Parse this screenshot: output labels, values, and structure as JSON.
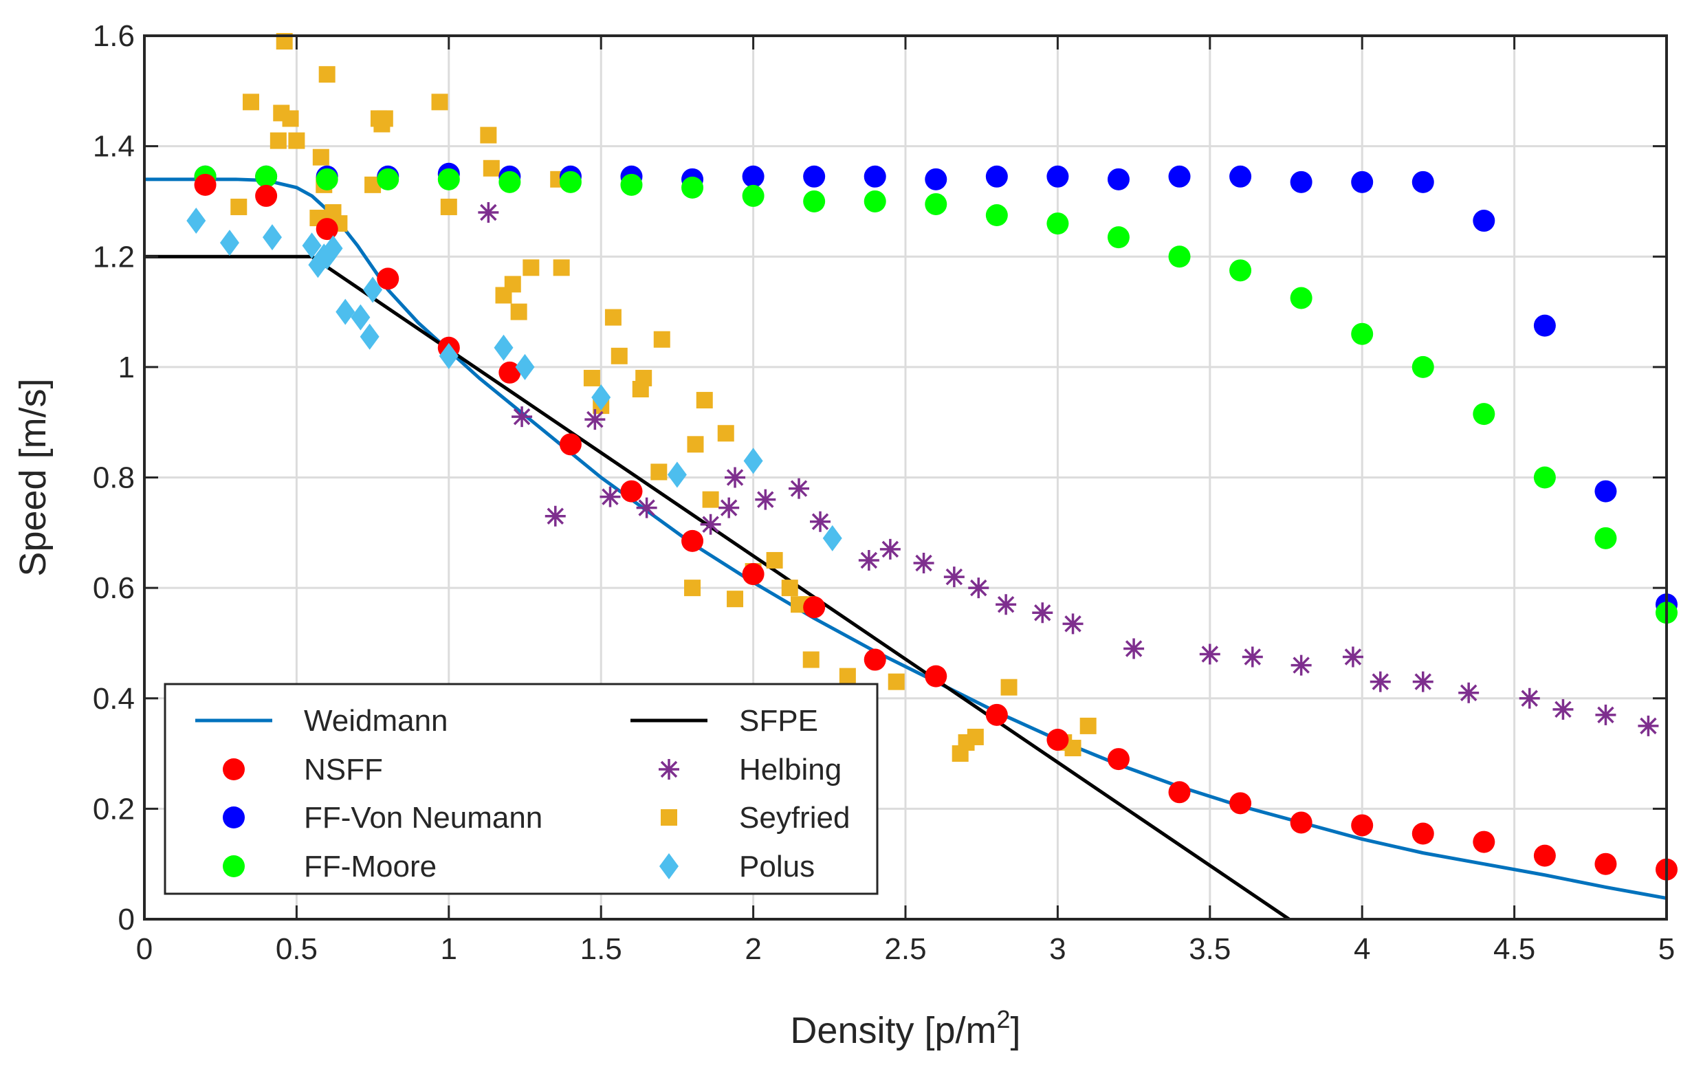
{
  "chart_data": {
    "type": "scatter",
    "title": "",
    "xlabel": "Density [p/m",
    "xlabel_sup": "2",
    "xlabel_end": "]",
    "ylabel": "Speed [m/s]",
    "xlim": [
      0,
      5
    ],
    "ylim": [
      0,
      1.6
    ],
    "xticks": [
      0,
      0.5,
      1,
      1.5,
      2,
      2.5,
      3,
      3.5,
      4,
      4.5,
      5
    ],
    "xtick_labels": [
      "0",
      "0.5",
      "1",
      "1.5",
      "2",
      "2.5",
      "3",
      "3.5",
      "4",
      "4.5",
      "5"
    ],
    "yticks": [
      0,
      0.2,
      0.4,
      0.6,
      0.8,
      1,
      1.2,
      1.4,
      1.6
    ],
    "ytick_labels": [
      "0",
      "0.2",
      "0.4",
      "0.6",
      "0.8",
      "1",
      "1.2",
      "1.4",
      "1.6"
    ],
    "grid": true,
    "legend_position": "bottom-left",
    "series": [
      {
        "name": "Weidmann",
        "kind": "line",
        "color": "#0072BD",
        "x": [
          0,
          0.1,
          0.2,
          0.3,
          0.4,
          0.5,
          0.55,
          0.6,
          0.65,
          0.7,
          0.75,
          0.8,
          0.85,
          0.9,
          0.95,
          1,
          1.1,
          1.2,
          1.3,
          1.4,
          1.5,
          1.6,
          1.7,
          1.8,
          1.9,
          2,
          2.2,
          2.4,
          2.6,
          2.8,
          3,
          3.2,
          3.4,
          3.6,
          3.8,
          4,
          4.2,
          4.4,
          4.6,
          4.8,
          5
        ],
        "y": [
          1.34,
          1.34,
          1.34,
          1.34,
          1.338,
          1.325,
          1.31,
          1.285,
          1.255,
          1.22,
          1.18,
          1.14,
          1.11,
          1.08,
          1.055,
          1.03,
          0.98,
          0.935,
          0.89,
          0.845,
          0.8,
          0.76,
          0.72,
          0.68,
          0.645,
          0.61,
          0.545,
          0.485,
          0.43,
          0.375,
          0.325,
          0.28,
          0.24,
          0.205,
          0.175,
          0.145,
          0.12,
          0.1,
          0.08,
          0.058,
          0.038
        ]
      },
      {
        "name": "SFPE",
        "kind": "line",
        "color": "#000000",
        "x": [
          0,
          0.55,
          3.76
        ],
        "y": [
          1.2,
          1.2,
          0
        ]
      },
      {
        "name": "NSFF",
        "kind": "circle",
        "color": "#FF0000",
        "x": [
          0.2,
          0.4,
          0.6,
          0.8,
          1.0,
          1.2,
          1.4,
          1.6,
          1.8,
          2.0,
          2.2,
          2.4,
          2.6,
          2.8,
          3.0,
          3.2,
          3.4,
          3.6,
          3.8,
          4.0,
          4.2,
          4.4,
          4.6,
          4.8,
          5.0
        ],
        "y": [
          1.33,
          1.31,
          1.25,
          1.16,
          1.035,
          0.99,
          0.86,
          0.775,
          0.685,
          0.625,
          0.565,
          0.47,
          0.44,
          0.37,
          0.325,
          0.29,
          0.23,
          0.21,
          0.175,
          0.17,
          0.155,
          0.14,
          0.115,
          0.1,
          0.09
        ]
      },
      {
        "name": "FF-Von Neumann",
        "kind": "circle",
        "color": "#0000FF",
        "x": [
          0.2,
          0.4,
          0.6,
          0.8,
          1.0,
          1.2,
          1.4,
          1.6,
          1.8,
          2.0,
          2.2,
          2.4,
          2.6,
          2.8,
          3.0,
          3.2,
          3.4,
          3.6,
          3.8,
          4.0,
          4.2,
          4.4,
          4.6,
          4.8,
          5.0
        ],
        "y": [
          1.345,
          1.345,
          1.345,
          1.345,
          1.35,
          1.345,
          1.345,
          1.345,
          1.34,
          1.345,
          1.345,
          1.345,
          1.34,
          1.345,
          1.345,
          1.34,
          1.345,
          1.345,
          1.335,
          1.335,
          1.335,
          1.265,
          1.075,
          0.775,
          0.57
        ]
      },
      {
        "name": "FF-Moore",
        "kind": "circle",
        "color": "#00FF00",
        "x": [
          0.2,
          0.4,
          0.6,
          0.8,
          1.0,
          1.2,
          1.4,
          1.6,
          1.8,
          2.0,
          2.2,
          2.4,
          2.6,
          2.8,
          3.0,
          3.2,
          3.4,
          3.6,
          3.8,
          4.0,
          4.2,
          4.4,
          4.6,
          4.8,
          5.0
        ],
        "y": [
          1.345,
          1.345,
          1.34,
          1.34,
          1.34,
          1.335,
          1.335,
          1.33,
          1.325,
          1.31,
          1.3,
          1.3,
          1.295,
          1.275,
          1.26,
          1.235,
          1.2,
          1.175,
          1.125,
          1.06,
          1.0,
          0.915,
          0.8,
          0.69,
          0.555
        ]
      },
      {
        "name": "Helbing",
        "kind": "asterisk",
        "color": "#7E2F8E",
        "x": [
          1.13,
          1.24,
          1.35,
          1.48,
          1.53,
          1.65,
          1.86,
          1.92,
          1.94,
          2.04,
          2.15,
          2.22,
          2.38,
          2.45,
          2.56,
          2.66,
          2.74,
          2.83,
          2.95,
          3.05,
          3.25,
          3.5,
          3.64,
          3.8,
          3.97,
          4.06,
          4.2,
          4.35,
          4.55,
          4.66,
          4.8,
          4.94
        ],
        "y": [
          1.28,
          0.91,
          0.73,
          0.905,
          0.765,
          0.745,
          0.715,
          0.745,
          0.8,
          0.76,
          0.78,
          0.72,
          0.65,
          0.67,
          0.645,
          0.62,
          0.6,
          0.57,
          0.555,
          0.535,
          0.49,
          0.48,
          0.475,
          0.46,
          0.475,
          0.43,
          0.43,
          0.41,
          0.4,
          0.38,
          0.37,
          0.35
        ]
      },
      {
        "name": "Seyfried",
        "kind": "square",
        "color": "#EDB120",
        "x": [
          0.35,
          0.31,
          0.46,
          0.44,
          0.48,
          0.5,
          0.45,
          0.58,
          0.6,
          0.57,
          0.59,
          0.62,
          0.64,
          0.77,
          0.75,
          0.79,
          0.78,
          0.97,
          1.0,
          1.13,
          1.14,
          1.18,
          1.21,
          1.23,
          1.27,
          1.36,
          1.37,
          1.47,
          1.5,
          1.54,
          1.56,
          1.63,
          1.64,
          1.69,
          1.7,
          1.81,
          1.84,
          1.8,
          1.91,
          1.94,
          1.86,
          2.0,
          2.07,
          2.12,
          2.15,
          2.18,
          2.19,
          2.31,
          2.47,
          2.68,
          2.7,
          2.73,
          2.84,
          3.02,
          3.05,
          3.1
        ],
        "y": [
          1.48,
          1.29,
          1.59,
          1.41,
          1.45,
          1.41,
          1.46,
          1.38,
          1.53,
          1.27,
          1.33,
          1.28,
          1.26,
          1.45,
          1.33,
          1.45,
          1.44,
          1.48,
          1.29,
          1.42,
          1.36,
          1.13,
          1.15,
          1.1,
          1.18,
          1.34,
          1.18,
          0.98,
          0.93,
          1.09,
          1.02,
          0.96,
          0.98,
          0.81,
          1.05,
          0.86,
          0.94,
          0.6,
          0.88,
          0.58,
          0.76,
          0.63,
          0.65,
          0.6,
          0.57,
          0.57,
          0.47,
          0.44,
          0.43,
          0.3,
          0.32,
          0.33,
          0.42,
          0.32,
          0.31,
          0.35
        ]
      },
      {
        "name": "Polus",
        "kind": "diamond",
        "color": "#4DBEEE",
        "x": [
          0.17,
          0.28,
          0.42,
          0.55,
          0.57,
          0.59,
          0.6,
          0.62,
          0.66,
          0.71,
          0.74,
          0.75,
          1.0,
          1.18,
          1.25,
          1.5,
          1.75,
          2.0,
          2.26
        ],
        "y": [
          1.265,
          1.225,
          1.235,
          1.22,
          1.185,
          1.2,
          1.2,
          1.215,
          1.1,
          1.09,
          1.055,
          1.14,
          1.02,
          1.035,
          1.0,
          0.945,
          0.805,
          0.83,
          0.69
        ]
      }
    ]
  },
  "legend": {
    "left": [
      {
        "label": "Weidmann",
        "marker": "line",
        "color": "#0072BD"
      },
      {
        "label": "NSFF",
        "marker": "circle",
        "color": "#FF0000"
      },
      {
        "label": "FF-Von Neumann",
        "marker": "circle",
        "color": "#0000FF"
      },
      {
        "label": "FF-Moore",
        "marker": "circle",
        "color": "#00FF00"
      }
    ],
    "right": [
      {
        "label": "SFPE",
        "marker": "line",
        "color": "#000000"
      },
      {
        "label": "Helbing",
        "marker": "asterisk",
        "color": "#7E2F8E"
      },
      {
        "label": "Seyfried",
        "marker": "square",
        "color": "#EDB120"
      },
      {
        "label": "Polus",
        "marker": "diamond",
        "color": "#4DBEEE"
      }
    ]
  }
}
